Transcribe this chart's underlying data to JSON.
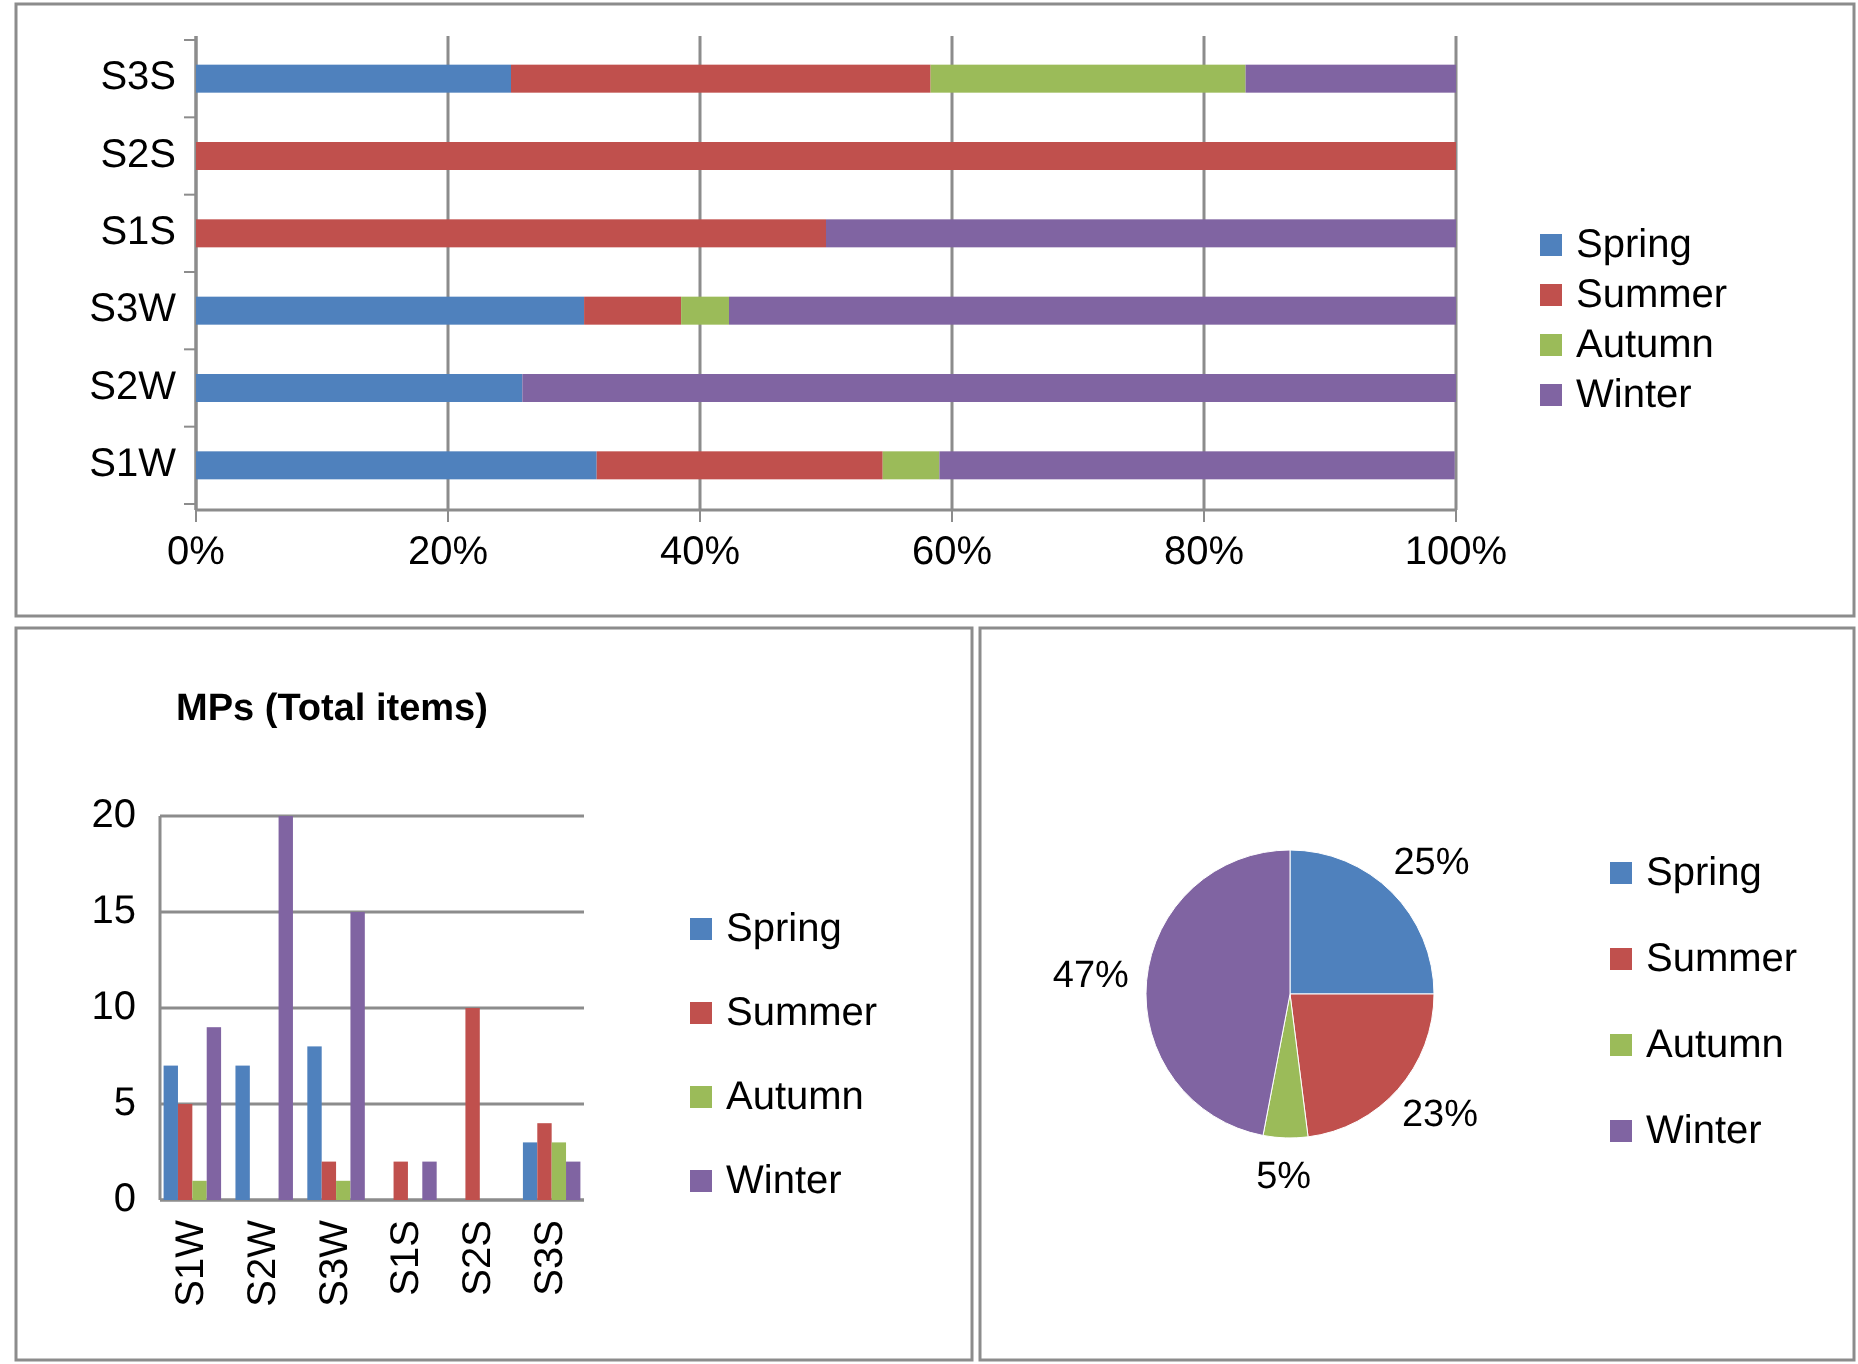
{
  "chart_data": [
    {
      "type": "bar",
      "orientation": "horizontal",
      "stacked": true,
      "categories": [
        "S3S",
        "S2S",
        "S1S",
        "S3W",
        "S2W",
        "S1W"
      ],
      "series": [
        {
          "name": "Spring",
          "color": "#4f81bd",
          "values": [
            25,
            0,
            0,
            30.8,
            25.9,
            31.8
          ]
        },
        {
          "name": "Summer",
          "color": "#c0504d",
          "values": [
            33.3,
            100,
            50,
            7.7,
            0,
            22.7
          ]
        },
        {
          "name": "Autumn",
          "color": "#9bbb59",
          "values": [
            25,
            0,
            0,
            3.8,
            0,
            4.5
          ]
        },
        {
          "name": "Winter",
          "color": "#8064a2",
          "values": [
            16.7,
            0,
            50,
            57.7,
            74.1,
            40.9
          ]
        }
      ],
      "xlim": [
        0,
        100
      ],
      "xticks": [
        {
          "value": 0,
          "label": "0%"
        },
        {
          "value": 20,
          "label": "20%"
        },
        {
          "value": 40,
          "label": "40%"
        },
        {
          "value": 60,
          "label": "60%"
        },
        {
          "value": 80,
          "label": "80%"
        },
        {
          "value": 100,
          "label": "100%"
        }
      ],
      "grid": "x",
      "legend": "right"
    },
    {
      "type": "bar",
      "title": "MPs (Total items)",
      "categories": [
        "S1W",
        "S2W",
        "S3W",
        "S1S",
        "S2S",
        "S3S"
      ],
      "series": [
        {
          "name": "Spring",
          "color": "#4f81bd",
          "values": [
            7,
            7,
            8,
            0,
            0,
            3
          ]
        },
        {
          "name": "Summer",
          "color": "#c0504d",
          "values": [
            5,
            0,
            2,
            2,
            10,
            4
          ]
        },
        {
          "name": "Autumn",
          "color": "#9bbb59",
          "values": [
            1,
            0,
            1,
            0,
            0,
            3
          ]
        },
        {
          "name": "Winter",
          "color": "#8064a2",
          "values": [
            9,
            20,
            15,
            2,
            0,
            2
          ]
        }
      ],
      "ylim": [
        0,
        20
      ],
      "yticks": [
        0,
        5,
        10,
        15,
        20
      ],
      "grid": "y",
      "legend": "right"
    },
    {
      "type": "pie",
      "categories": [
        "Spring",
        "Summer",
        "Autumn",
        "Winter"
      ],
      "values": [
        25,
        23,
        5,
        47
      ],
      "colors": [
        "#4f81bd",
        "#c0504d",
        "#9bbb59",
        "#8064a2"
      ],
      "value_labels": [
        "25%",
        "23%",
        "5%",
        "47%"
      ],
      "legend": "right"
    }
  ]
}
